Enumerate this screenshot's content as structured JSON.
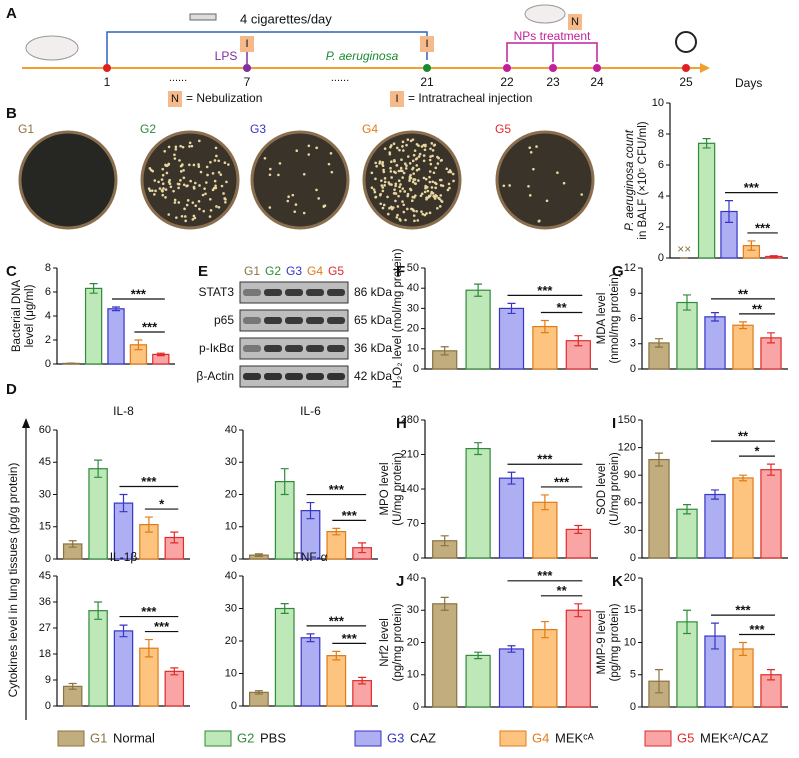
{
  "panel_labels": [
    "A",
    "B",
    "C",
    "D",
    "E",
    "F",
    "G",
    "H",
    "I",
    "J",
    "K"
  ],
  "timeline": {
    "days": [
      "1",
      "7",
      "21",
      "22",
      "23",
      "24",
      "25"
    ],
    "unit": "Days",
    "dose": "4 cigarettes/day",
    "lps": "LPS",
    "pathogen": "P. aeruginosa",
    "treatment": "NPs treatment",
    "n_key": "N",
    "i_key": "I",
    "n_legend": "= Nebulization",
    "i_legend": "= Intratracheal injection",
    "dots": "......"
  },
  "blot": {
    "rows": [
      {
        "protein": "STAT3",
        "size": "86 kDa"
      },
      {
        "protein": "p65",
        "size": "65 kDa"
      },
      {
        "protein": "p-IκBα",
        "size": "36 kDa"
      },
      {
        "protein": "β-Actin",
        "size": "42 kDa"
      }
    ]
  },
  "cytokine_axis_label": "Cytokines level in lung tissues (pg/g protein)",
  "legend": {
    "groups": [
      {
        "label": "G1",
        "name": "Normal",
        "fill": "#c2ad7e",
        "edge": "#8b7340"
      },
      {
        "label": "G2",
        "name": "PBS",
        "fill": "#bfe8b9",
        "edge": "#2e8b3a"
      },
      {
        "label": "G3",
        "name": "CAZ",
        "fill": "#aeaef2",
        "edge": "#3535c8"
      },
      {
        "label": "G4",
        "name": "MEKᶜᴬ",
        "fill": "#fcc47e",
        "edge": "#e07b1a"
      },
      {
        "label": "G5",
        "name": "MEKᶜᴬ/CAZ",
        "fill": "#f9a5a5",
        "edge": "#e02b2b"
      }
    ]
  },
  "chart_data": [
    {
      "type": "bar",
      "ylabel": [
        "P. aeruginosa count",
        "in BALF (×10⁵ CFU/ml)"
      ],
      "values": [
        0,
        7.4,
        3.0,
        0.8,
        0.1
      ],
      "errors": [
        0,
        0.3,
        0.7,
        0.3,
        0.05
      ],
      "ylim": [
        0,
        10
      ],
      "yticks": [
        0,
        2,
        4,
        6,
        8,
        10
      ],
      "na_label": "××",
      "significance": [
        "***",
        "***"
      ]
    },
    {
      "type": "bar",
      "ylabel": [
        "Bacterial DNA",
        "level (μg/ml)"
      ],
      "values": [
        0.05,
        6.3,
        4.6,
        1.6,
        0.8
      ],
      "errors": [
        0.02,
        0.4,
        0.15,
        0.4,
        0.1
      ],
      "ylim": [
        0,
        8
      ],
      "yticks": [
        0,
        2,
        4,
        6,
        8
      ],
      "significance": [
        "***",
        "***"
      ]
    },
    {
      "type": "bar",
      "ylabel": [
        "H₂O₂ level (mol/mg protein)"
      ],
      "values": [
        9,
        39,
        30,
        21,
        14
      ],
      "errors": [
        2,
        3,
        2.5,
        3,
        2.5
      ],
      "ylim": [
        0,
        50
      ],
      "yticks": [
        0,
        10,
        20,
        30,
        40,
        50
      ],
      "significance": [
        "***",
        "**"
      ]
    },
    {
      "type": "bar",
      "ylabel": [
        "MDA level",
        "(nmol/mg protein)"
      ],
      "values": [
        3.1,
        7.9,
        6.2,
        5.2,
        3.7
      ],
      "errors": [
        0.5,
        0.9,
        0.5,
        0.4,
        0.6
      ],
      "ylim": [
        0,
        12
      ],
      "yticks": [
        0,
        3,
        6,
        9,
        12
      ],
      "significance": [
        "**",
        "**"
      ]
    },
    {
      "type": "bar",
      "title": "IL-8",
      "values": [
        7,
        42,
        26,
        16,
        10
      ],
      "errors": [
        1.5,
        4,
        4,
        3.5,
        2.5
      ],
      "ylim": [
        0,
        60
      ],
      "yticks": [
        0,
        15,
        30,
        45,
        60
      ],
      "significance": [
        "***",
        "*"
      ]
    },
    {
      "type": "bar",
      "title": "IL-6",
      "values": [
        1.2,
        24,
        15,
        8.5,
        3.5
      ],
      "errors": [
        0.4,
        4,
        2.5,
        1,
        1.5
      ],
      "ylim": [
        0,
        40
      ],
      "yticks": [
        0,
        10,
        20,
        30,
        40
      ],
      "significance": [
        "***",
        "***"
      ]
    },
    {
      "type": "bar",
      "title": "IL-1β",
      "values": [
        6.8,
        33,
        26,
        20,
        12
      ],
      "errors": [
        1,
        3,
        2,
        3,
        1.2
      ],
      "ylim": [
        0,
        45
      ],
      "yticks": [
        0,
        9,
        18,
        27,
        36,
        45
      ],
      "significance": [
        "***",
        "***"
      ]
    },
    {
      "type": "bar",
      "title": "TNF-α",
      "values": [
        4.2,
        30,
        21,
        15.5,
        7.8
      ],
      "errors": [
        0.5,
        1.5,
        1.2,
        1.3,
        1
      ],
      "ylim": [
        0,
        40
      ],
      "yticks": [
        0,
        10,
        20,
        30,
        40
      ],
      "significance": [
        "***",
        "***"
      ]
    },
    {
      "type": "bar",
      "ylabel": [
        "MPO level",
        "(U/mg protein)"
      ],
      "values": [
        35,
        222,
        162,
        113,
        58
      ],
      "errors": [
        10,
        12,
        12,
        15,
        8
      ],
      "ylim": [
        0,
        280
      ],
      "yticks": [
        0,
        70,
        140,
        210,
        280
      ],
      "significance": [
        "***",
        "***"
      ]
    },
    {
      "type": "bar",
      "ylabel": [
        "SOD level",
        "(U/mg protein)"
      ],
      "values": [
        107,
        53,
        69,
        87,
        96
      ],
      "errors": [
        7,
        5,
        5,
        3,
        6
      ],
      "ylim": [
        0,
        150
      ],
      "yticks": [
        0,
        30,
        60,
        90,
        120,
        150
      ],
      "significance": [
        "**",
        "*"
      ]
    },
    {
      "type": "bar",
      "ylabel": [
        "Nrf2 level",
        "(pg/mg protein)"
      ],
      "values": [
        32,
        16,
        18,
        24,
        30
      ],
      "errors": [
        2,
        1,
        1,
        2.5,
        2
      ],
      "ylim": [
        0,
        40
      ],
      "yticks": [
        0,
        10,
        20,
        30,
        40
      ],
      "significance": [
        "***",
        "**"
      ]
    },
    {
      "type": "bar",
      "ylabel": [
        "MMP-9 level",
        "(pg/mg protein)"
      ],
      "values": [
        4,
        13.2,
        11,
        9,
        5
      ],
      "errors": [
        1.8,
        1.8,
        2,
        1,
        0.8
      ],
      "ylim": [
        0,
        20
      ],
      "yticks": [
        0,
        5,
        10,
        15,
        20
      ],
      "significance": [
        "***",
        "***"
      ]
    }
  ]
}
